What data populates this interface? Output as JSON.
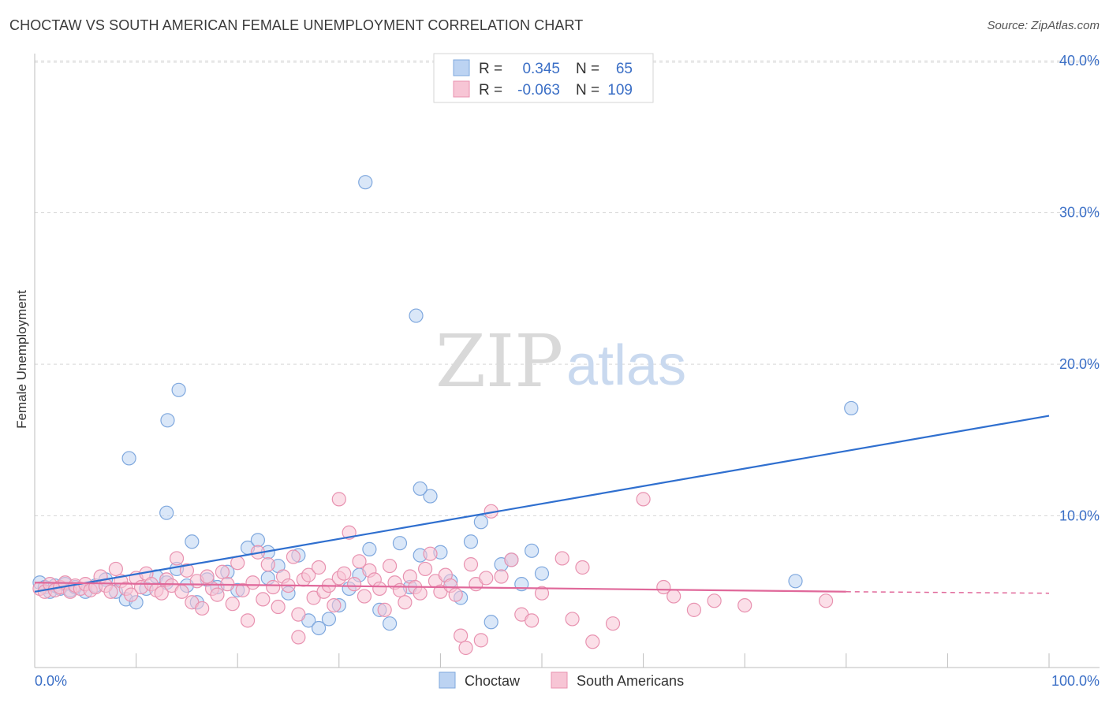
{
  "title": "CHOCTAW VS SOUTH AMERICAN FEMALE UNEMPLOYMENT CORRELATION CHART",
  "source": "Source: ZipAtlas.com",
  "watermark": {
    "zip": "ZIP",
    "atlas": "atlas"
  },
  "colors": {
    "choctaw_fill": "#bcd3f2",
    "choctaw_stroke": "#7fa8de",
    "choctaw_line": "#2f6fcf",
    "south_fill": "#f7c5d5",
    "south_stroke": "#e892b0",
    "south_line": "#e0689a",
    "axis_text": "#3b6fc6",
    "grid": "#d8d8d8"
  },
  "chart_data": {
    "type": "scatter",
    "title": "CHOCTAW VS SOUTH AMERICAN FEMALE UNEMPLOYMENT CORRELATION CHART",
    "xlabel": "",
    "ylabel": "Female Unemployment",
    "xlim": [
      0,
      100
    ],
    "ylim": [
      0,
      41
    ],
    "x_tick_labels": [
      "0.0%",
      "100.0%"
    ],
    "y_ticks": [
      10,
      20,
      30,
      40
    ],
    "y_tick_labels": [
      "10.0%",
      "20.0%",
      "30.0%",
      "40.0%"
    ],
    "legend": [
      {
        "name": "Choctaw",
        "r_label": "R =",
        "r": "0.345",
        "n_label": "N =",
        "n": "65"
      },
      {
        "name": "South Americans",
        "r_label": "R =",
        "r": "-0.063",
        "n_label": "N =",
        "n": "109"
      }
    ],
    "series": [
      {
        "name": "Choctaw",
        "trend": {
          "x0": 0,
          "y0": 5.0,
          "x1": 100,
          "y1": 16.6
        },
        "points": [
          [
            0.5,
            5.6
          ],
          [
            1,
            5.3
          ],
          [
            1.5,
            5.0
          ],
          [
            2,
            5.4
          ],
          [
            2.5,
            5.2
          ],
          [
            3,
            5.5
          ],
          [
            3.5,
            5.1
          ],
          [
            4,
            5.3
          ],
          [
            5,
            5.0
          ],
          [
            6,
            5.4
          ],
          [
            7,
            5.8
          ],
          [
            8,
            5.0
          ],
          [
            9,
            4.5
          ],
          [
            10,
            4.3
          ],
          [
            11,
            5.2
          ],
          [
            12,
            6.0
          ],
          [
            13,
            5.6
          ],
          [
            14,
            6.5
          ],
          [
            15,
            5.4
          ],
          [
            16,
            4.3
          ],
          [
            17,
            5.8
          ],
          [
            18,
            5.3
          ],
          [
            19,
            6.3
          ],
          [
            20,
            5.1
          ],
          [
            21,
            7.9
          ],
          [
            22,
            8.4
          ],
          [
            23,
            5.9
          ],
          [
            24,
            6.7
          ],
          [
            25,
            4.9
          ],
          [
            26,
            7.4
          ],
          [
            27,
            3.1
          ],
          [
            28,
            2.6
          ],
          [
            29,
            3.2
          ],
          [
            30,
            4.1
          ],
          [
            31,
            5.2
          ],
          [
            32,
            6.1
          ],
          [
            33,
            7.8
          ],
          [
            34,
            3.8
          ],
          [
            35,
            2.9
          ],
          [
            36,
            8.2
          ],
          [
            37,
            5.3
          ],
          [
            38,
            7.4
          ],
          [
            39,
            11.3
          ],
          [
            40,
            7.6
          ],
          [
            41,
            5.7
          ],
          [
            42,
            4.6
          ],
          [
            43,
            8.3
          ],
          [
            44,
            9.6
          ],
          [
            45,
            3.0
          ],
          [
            46,
            6.8
          ],
          [
            47,
            7.1
          ],
          [
            48,
            5.5
          ],
          [
            49,
            7.7
          ],
          [
            50,
            6.2
          ],
          [
            9.3,
            13.8
          ],
          [
            13,
            10.2
          ],
          [
            13.1,
            16.3
          ],
          [
            14.2,
            18.3
          ],
          [
            32.6,
            32.0
          ],
          [
            37.6,
            23.2
          ],
          [
            38,
            11.8
          ],
          [
            80.5,
            17.1
          ],
          [
            75,
            5.7
          ],
          [
            15.5,
            8.3
          ],
          [
            23,
            7.6
          ]
        ]
      },
      {
        "name": "South Americans",
        "trend": {
          "x0": 0,
          "y0": 5.6,
          "x1": 80,
          "y1": 5.0,
          "dash_x1": 100,
          "dash_y1": 4.9
        },
        "points": [
          [
            0.5,
            5.2
          ],
          [
            1,
            5.0
          ],
          [
            1.5,
            5.5
          ],
          [
            2,
            5.1
          ],
          [
            2.5,
            5.3
          ],
          [
            3,
            5.6
          ],
          [
            3.5,
            5.0
          ],
          [
            4,
            5.4
          ],
          [
            4.5,
            5.2
          ],
          [
            5,
            5.5
          ],
          [
            5.5,
            5.1
          ],
          [
            6,
            5.3
          ],
          [
            6.5,
            6.0
          ],
          [
            7,
            5.4
          ],
          [
            7.5,
            5.0
          ],
          [
            8,
            6.5
          ],
          [
            8.5,
            5.7
          ],
          [
            9,
            5.2
          ],
          [
            9.5,
            4.8
          ],
          [
            10,
            5.9
          ],
          [
            10.5,
            5.3
          ],
          [
            11,
            6.2
          ],
          [
            11.5,
            5.5
          ],
          [
            12,
            5.1
          ],
          [
            12.5,
            4.9
          ],
          [
            13,
            5.8
          ],
          [
            13.5,
            5.4
          ],
          [
            14,
            7.2
          ],
          [
            14.5,
            5.0
          ],
          [
            15,
            6.4
          ],
          [
            15.5,
            4.3
          ],
          [
            16,
            5.7
          ],
          [
            16.5,
            3.9
          ],
          [
            17,
            6.0
          ],
          [
            17.5,
            5.2
          ],
          [
            18,
            4.8
          ],
          [
            18.5,
            6.3
          ],
          [
            19,
            5.5
          ],
          [
            19.5,
            4.2
          ],
          [
            20,
            6.9
          ],
          [
            20.5,
            5.1
          ],
          [
            21,
            3.1
          ],
          [
            21.5,
            5.6
          ],
          [
            22,
            7.6
          ],
          [
            22.5,
            4.5
          ],
          [
            23,
            6.8
          ],
          [
            23.5,
            5.3
          ],
          [
            24,
            4.0
          ],
          [
            24.5,
            6.0
          ],
          [
            25,
            5.4
          ],
          [
            25.5,
            7.3
          ],
          [
            26,
            3.5
          ],
          [
            26.5,
            5.8
          ],
          [
            27,
            6.1
          ],
          [
            27.5,
            4.6
          ],
          [
            28,
            6.6
          ],
          [
            28.5,
            5.0
          ],
          [
            29,
            5.4
          ],
          [
            29.5,
            4.1
          ],
          [
            30,
            5.9
          ],
          [
            30.5,
            6.2
          ],
          [
            31,
            8.9
          ],
          [
            31.5,
            5.5
          ],
          [
            32,
            7.0
          ],
          [
            32.5,
            4.7
          ],
          [
            33,
            6.4
          ],
          [
            33.5,
            5.8
          ],
          [
            34,
            5.2
          ],
          [
            34.5,
            3.8
          ],
          [
            35,
            6.7
          ],
          [
            35.5,
            5.6
          ],
          [
            36,
            5.1
          ],
          [
            36.5,
            4.3
          ],
          [
            37,
            6.0
          ],
          [
            37.5,
            5.3
          ],
          [
            38,
            4.9
          ],
          [
            38.5,
            6.5
          ],
          [
            39,
            7.5
          ],
          [
            39.5,
            5.7
          ],
          [
            40,
            5.0
          ],
          [
            40.5,
            6.1
          ],
          [
            41,
            5.4
          ],
          [
            41.5,
            4.8
          ],
          [
            42,
            2.1
          ],
          [
            42.5,
            1.3
          ],
          [
            43,
            6.8
          ],
          [
            43.5,
            5.5
          ],
          [
            44,
            1.8
          ],
          [
            44.5,
            5.9
          ],
          [
            45,
            10.3
          ],
          [
            46,
            6.0
          ],
          [
            47,
            7.1
          ],
          [
            48,
            3.5
          ],
          [
            49,
            3.1
          ],
          [
            50,
            4.9
          ],
          [
            52,
            7.2
          ],
          [
            53,
            3.2
          ],
          [
            54,
            6.6
          ],
          [
            55,
            1.7
          ],
          [
            57,
            2.9
          ],
          [
            60,
            11.1
          ],
          [
            62,
            5.3
          ],
          [
            63,
            4.7
          ],
          [
            65,
            3.8
          ],
          [
            67,
            4.4
          ],
          [
            70,
            4.1
          ],
          [
            78,
            4.4
          ],
          [
            30,
            11.1
          ],
          [
            26,
            2.0
          ]
        ]
      }
    ]
  },
  "bottom_legend": [
    "Choctaw",
    "South Americans"
  ]
}
